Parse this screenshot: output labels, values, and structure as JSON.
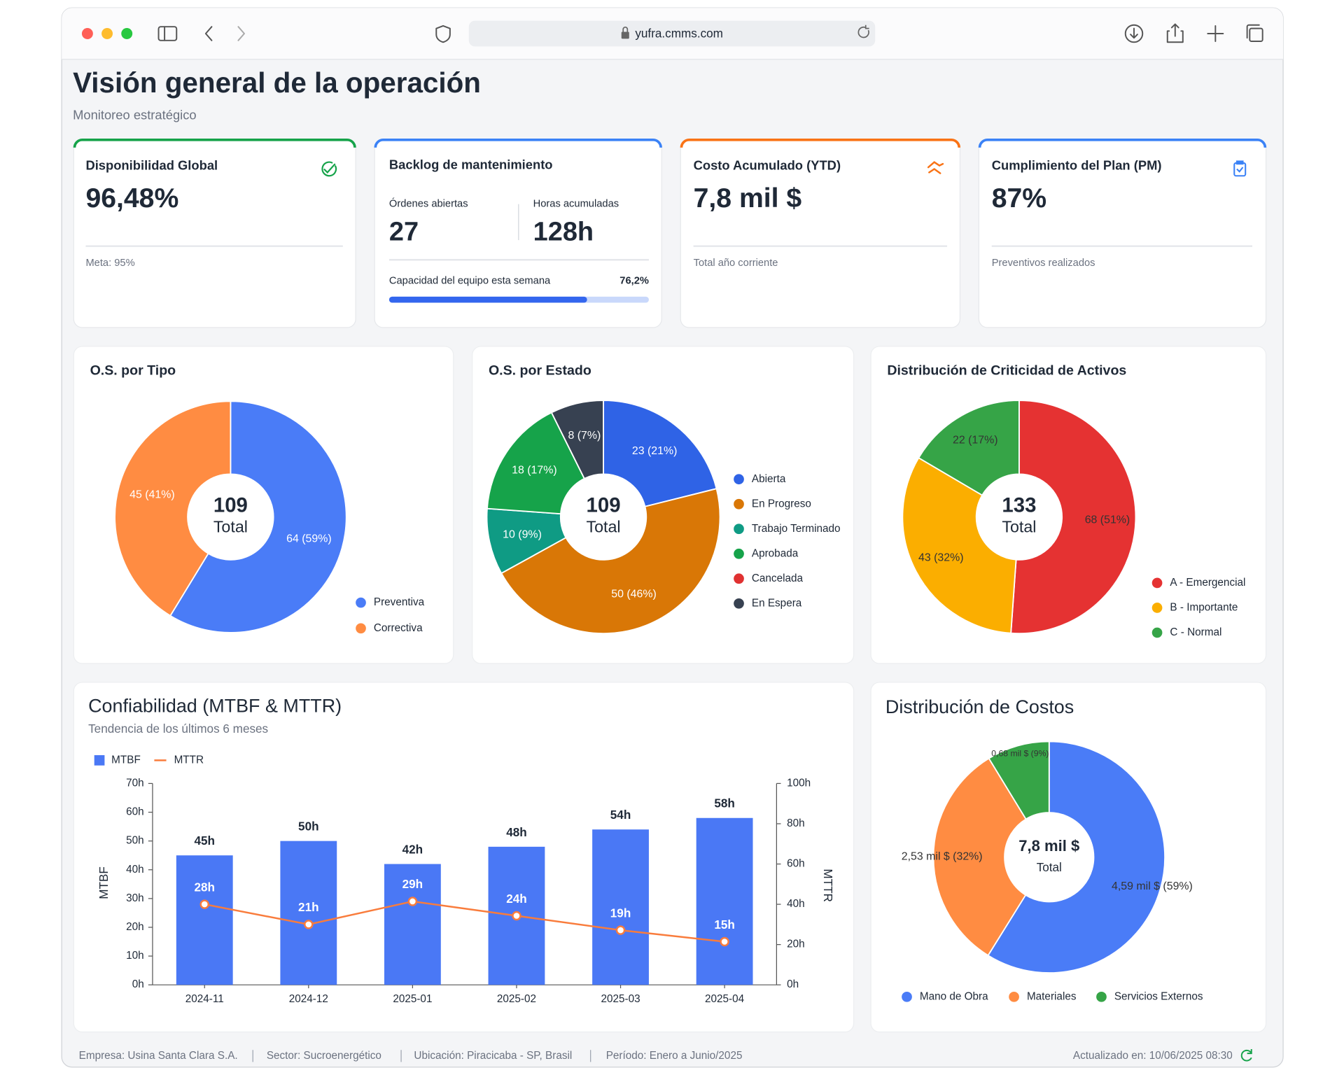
{
  "browser": {
    "url": "yufra.cmms.com"
  },
  "header": {
    "title": "Visión general de la operación",
    "subtitle": "Monitoreo estratégico"
  },
  "kpis": [
    {
      "title": "Disponibilidad Global",
      "value": "96,48%",
      "note": "Meta: 95%",
      "color": "#16a34a"
    },
    {
      "title": "Backlog de mantenimiento",
      "color": "#3b82f6",
      "open_label": "Órdenes abiertas",
      "open_value": 27,
      "hours_label": "Horas acumuladas",
      "hours_value": "128h",
      "capacity": {
        "label": "Capacidad del equipo esta semana",
        "value": 76.2,
        "value_label": "76,2%"
      }
    },
    {
      "title": "Costo Acumulado (YTD)",
      "value": "7,8 mil $",
      "note": "Total año corriente",
      "color": "#f97316"
    },
    {
      "title": "Cumplimiento del Plan (PM)",
      "value": "87%",
      "note": "Preventivos realizados",
      "color": "#3b82f6"
    }
  ],
  "chart_data": [
    {
      "type": "donut",
      "title": "O.S. por Tipo",
      "categories": [
        "Preventiva",
        "Correctiva"
      ],
      "values": [
        64,
        45
      ],
      "value_labels": [
        "64 (59%)",
        "45 (41%)"
      ],
      "colors": [
        "#4a7cf7",
        "#ff8c42"
      ],
      "center_value": 109,
      "center_label": "Total"
    },
    {
      "type": "donut",
      "title": "O.S. por Estado",
      "categories": [
        "Abierta",
        "En Progreso",
        "Trabajo Terminado",
        "Aprobada",
        "Cancelada",
        "En Espera"
      ],
      "values": [
        23,
        50,
        10,
        18,
        0,
        8
      ],
      "value_labels": [
        "23 (21%)",
        "50 (46%)",
        "10 (9%)",
        "18 (17%)",
        null,
        "8 (7%)"
      ],
      "colors": [
        "#2f63e6",
        "#d97706",
        "#0f9b84",
        "#16a34a",
        "#e03131",
        "#374151"
      ],
      "center_value": 109,
      "center_label": "Total"
    },
    {
      "type": "donut",
      "title": "Distribución de Criticidad de Activos",
      "categories": [
        "A - Emergencial",
        "B - Importante",
        "C - Normal"
      ],
      "values": [
        68,
        43,
        22
      ],
      "value_labels": [
        "68 (51%)",
        "43 (32%)",
        "22 (17%)"
      ],
      "colors": [
        "#e53232",
        "#fbae00",
        "#36a447"
      ],
      "center_value": 133,
      "center_label": "Total"
    },
    {
      "type": "combo",
      "title": "Confiabilidad (MTBF & MTTR)",
      "subtitle": "Tendencia de los últimos 6 meses",
      "categories": [
        "2024-11",
        "2024-12",
        "2025-01",
        "2025-02",
        "2025-03",
        "2025-04"
      ],
      "series": [
        {
          "name": "MTBF",
          "type": "bar",
          "color": "#4a78f5",
          "values": [
            45,
            50,
            42,
            48,
            54,
            58
          ],
          "value_labels": [
            "45h",
            "50h",
            "42h",
            "48h",
            "54h",
            "58h"
          ]
        },
        {
          "name": "MTTR",
          "type": "line",
          "color": "#f97c3c",
          "values": [
            28,
            21,
            29,
            24,
            19,
            15
          ],
          "value_labels": [
            "28h",
            "21h",
            "29h",
            "24h",
            "19h",
            "15h"
          ]
        }
      ],
      "ylabel": "MTBF",
      "y2label": "MTTR",
      "ylim": [
        0,
        70
      ],
      "yticks": [
        {
          "value": 0,
          "label": "0h"
        },
        {
          "value": 10,
          "label": "10h"
        },
        {
          "value": 20,
          "label": "20h"
        },
        {
          "value": 30,
          "label": "30h"
        },
        {
          "value": 40,
          "label": "40h"
        },
        {
          "value": 50,
          "label": "50h"
        },
        {
          "value": 60,
          "label": "60h"
        },
        {
          "value": 70,
          "label": "70h"
        }
      ],
      "y2lim": [
        0,
        100
      ],
      "y2ticks": [
        {
          "value": 0,
          "label": "0h"
        },
        {
          "value": 20,
          "label": "20h"
        },
        {
          "value": 40,
          "label": "40h"
        },
        {
          "value": 60,
          "label": "60h"
        },
        {
          "value": 80,
          "label": "80h"
        },
        {
          "value": 100,
          "label": "100h"
        }
      ],
      "grid": false
    },
    {
      "type": "donut",
      "title": "Distribución de Costos",
      "categories": [
        "Mano de Obra",
        "Materiales",
        "Servicios Externos"
      ],
      "values": [
        4.59,
        2.53,
        0.68
      ],
      "value_labels": [
        "4,59 mil $ (59%)",
        "2,53 mil $ (32%)",
        "0,68 mil $ (9%)"
      ],
      "colors": [
        "#4a7cf7",
        "#ff8c42",
        "#36a447"
      ],
      "center_value": "7,8 mil $",
      "center_label": "Total"
    }
  ],
  "footer": {
    "items": [
      "Empresa: Usina Santa Clara S.A.",
      "Sector: Sucroenergético",
      "Ubicación: Piracicaba - SP, Brasil",
      "Período: Enero a Junio/2025"
    ],
    "updated": "Actualizado en: 10/06/2025 08:30"
  }
}
